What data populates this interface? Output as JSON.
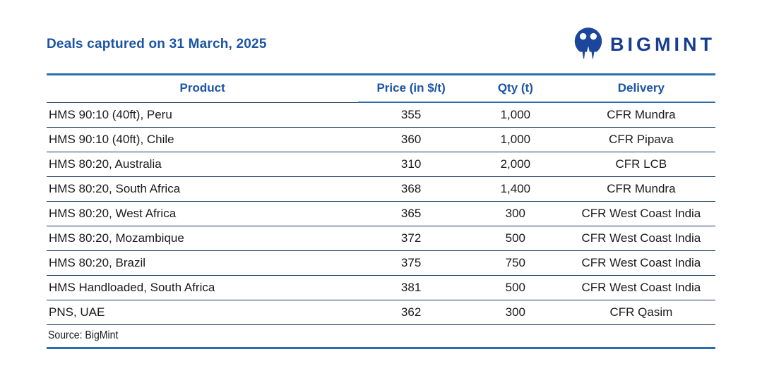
{
  "header": {
    "title": "Deals captured on 31 March, 2025",
    "brand_name": "BIGMINT"
  },
  "chart_data": {
    "type": "table",
    "title": "Deals captured on 31 March, 2025",
    "columns": [
      "Product",
      "Price (in $/t)",
      "Qty (t)",
      "Delivery"
    ],
    "rows": [
      [
        "HMS 90:10 (40ft), Peru",
        "355",
        "1,000",
        "CFR Mundra"
      ],
      [
        "HMS 90:10 (40ft), Chile",
        "360",
        "1,000",
        "CFR Pipava"
      ],
      [
        "HMS 80:20, Australia",
        "310",
        "2,000",
        "CFR LCB"
      ],
      [
        "HMS 80:20, South Africa",
        "368",
        "1,400",
        "CFR Mundra"
      ],
      [
        "HMS 80:20, West Africa",
        "365",
        "300",
        "CFR West Coast India"
      ],
      [
        "HMS 80:20, Mozambique",
        "372",
        "500",
        "CFR West Coast India"
      ],
      [
        "HMS 80:20, Brazil",
        "375",
        "750",
        "CFR West Coast India"
      ],
      [
        "HMS Handloaded, South Africa",
        "381",
        "500",
        "CFR West Coast India"
      ],
      [
        "PNS, UAE",
        "362",
        "300",
        "CFR Qasim"
      ]
    ],
    "source": "Source: BigMint",
    "layout": {
      "product_align": "left",
      "numeric_align": "center",
      "header_color": "#1B53A5",
      "rule_color_thick": "#2A6EAD",
      "rule_color_thin": "#17375D"
    }
  },
  "icons": {
    "brand_logo": "bigmint-two-people-monogram-icon"
  },
  "colors": {
    "title_blue": "#1B53A5",
    "brand_navy": "#163D8F",
    "line_thick": "#2A6EAD",
    "line_thin": "#17375D",
    "body_text": "#1A1A1A",
    "background": "#FFFFFF"
  }
}
